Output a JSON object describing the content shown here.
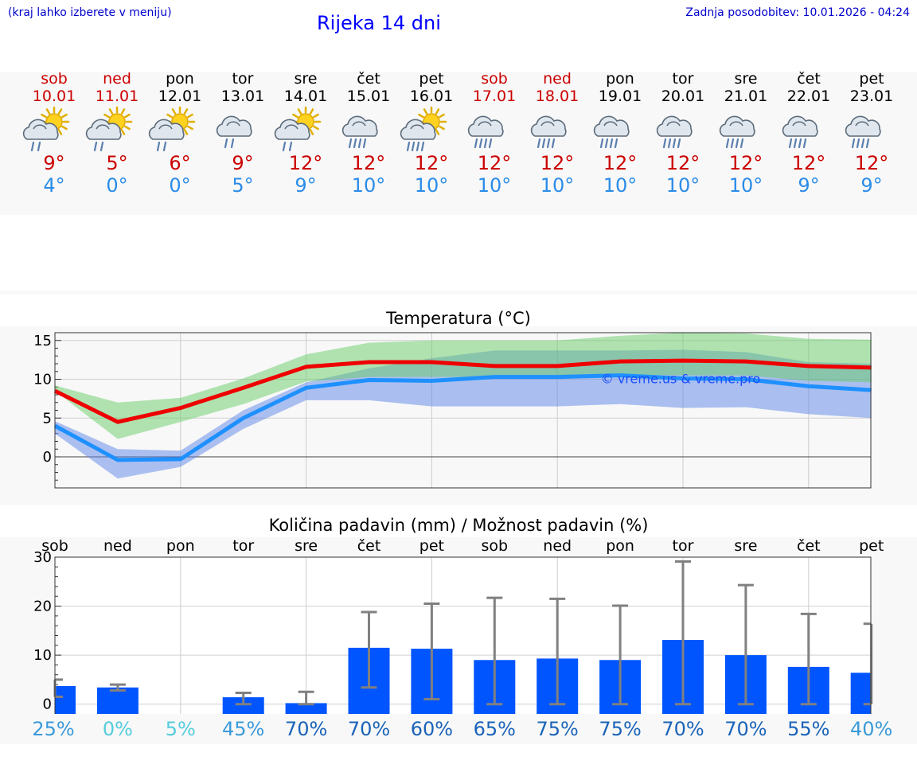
{
  "header": {
    "note": "(kraj lahko izberete v meniju)",
    "title": "Rijeka 14 dni",
    "updated": "Zadnja posodobitev: 10.01.2026 - 04:24"
  },
  "days": [
    {
      "name": "sob",
      "date": "10.01",
      "weekend": true,
      "icon": "sun-cloud-rain-icon",
      "tmax": "9°",
      "tmin": "4°"
    },
    {
      "name": "ned",
      "date": "11.01",
      "weekend": true,
      "icon": "sun-cloud-rain-icon",
      "tmax": "5°",
      "tmin": "0°"
    },
    {
      "name": "pon",
      "date": "12.01",
      "weekend": false,
      "icon": "sun-cloud-icon",
      "tmax": "6°",
      "tmin": "0°"
    },
    {
      "name": "tor",
      "date": "13.01",
      "weekend": false,
      "icon": "cloud-light-rain-icon",
      "tmax": "9°",
      "tmin": "5°"
    },
    {
      "name": "sre",
      "date": "14.01",
      "weekend": false,
      "icon": "sun-cloud-rain-icon",
      "tmax": "12°",
      "tmin": "9°"
    },
    {
      "name": "čet",
      "date": "15.01",
      "weekend": false,
      "icon": "cloud-heavy-rain-icon",
      "tmax": "12°",
      "tmin": "10°"
    },
    {
      "name": "pet",
      "date": "16.01",
      "weekend": false,
      "icon": "sun-cloud-heavy-rain-icon",
      "tmax": "12°",
      "tmin": "10°"
    },
    {
      "name": "sob",
      "date": "17.01",
      "weekend": true,
      "icon": "cloud-heavy-rain-icon",
      "tmax": "12°",
      "tmin": "10°"
    },
    {
      "name": "ned",
      "date": "18.01",
      "weekend": true,
      "icon": "cloud-heavy-rain-icon",
      "tmax": "12°",
      "tmin": "10°"
    },
    {
      "name": "pon",
      "date": "19.01",
      "weekend": false,
      "icon": "cloud-heavy-rain-icon",
      "tmax": "12°",
      "tmin": "10°"
    },
    {
      "name": "tor",
      "date": "20.01",
      "weekend": false,
      "icon": "cloud-heavy-rain-icon",
      "tmax": "12°",
      "tmin": "10°"
    },
    {
      "name": "sre",
      "date": "21.01",
      "weekend": false,
      "icon": "cloud-heavy-rain-icon",
      "tmax": "12°",
      "tmin": "10°"
    },
    {
      "name": "čet",
      "date": "22.01",
      "weekend": false,
      "icon": "cloud-heavy-rain-icon",
      "tmax": "12°",
      "tmin": "9°"
    },
    {
      "name": "pet",
      "date": "23.01",
      "weekend": false,
      "icon": "cloud-heavy-rain-icon",
      "tmax": "12°",
      "tmin": "9°"
    }
  ],
  "colors": {
    "weekend": "#cc0000",
    "tmax": "#cc0000",
    "tmin": "#2a8ce8",
    "max_line": "#ee0000",
    "min_line": "#1e90ff",
    "max_band": "#66cc66",
    "min_band": "#5b86e8",
    "precip_bar": "#0055ff"
  },
  "chart_data": [
    {
      "type": "line",
      "title": "Temperatura (°C)",
      "watermark": "© vreme.us & vreme.pro",
      "xlabel": "",
      "ylabel": "",
      "ylim": [
        -4,
        16
      ],
      "yticks": [
        0,
        5,
        10,
        15
      ],
      "grid": true,
      "series": [
        {
          "name": "max",
          "values": [
            8.5,
            4.5,
            6.3,
            8.9,
            11.6,
            12.2,
            12.2,
            11.7,
            11.7,
            12.3,
            12.4,
            12.3,
            11.7,
            11.5
          ]
        },
        {
          "name": "min",
          "values": [
            4.0,
            -0.4,
            -0.3,
            5.0,
            8.9,
            9.9,
            9.8,
            10.3,
            10.3,
            10.5,
            10.1,
            10.0,
            9.1,
            8.6
          ]
        }
      ],
      "bands": [
        {
          "name": "max_spread",
          "low": [
            8.5,
            2.3,
            4.5,
            6.8,
            9.7,
            10.3,
            10.3,
            10.3,
            10.3,
            10.6,
            10.5,
            10.5,
            9.8,
            9.6
          ],
          "high": [
            9.2,
            7.0,
            7.6,
            10.1,
            13.2,
            14.7,
            15.0,
            15.0,
            15.0,
            15.6,
            16.0,
            15.9,
            15.2,
            15.1
          ]
        },
        {
          "name": "min_spread",
          "low": [
            3.0,
            -2.8,
            -1.3,
            3.6,
            7.3,
            7.3,
            6.5,
            6.5,
            6.5,
            6.8,
            6.3,
            6.4,
            5.5,
            5.0
          ],
          "high": [
            4.6,
            1.0,
            0.8,
            6.0,
            9.6,
            11.4,
            12.7,
            13.7,
            13.7,
            13.7,
            13.8,
            13.5,
            12.2,
            12.0
          ]
        }
      ]
    },
    {
      "type": "bar",
      "title": "Količina padavin (mm) / Možnost padavin (%)",
      "categories": [
        "sob",
        "ned",
        "pon",
        "tor",
        "sre",
        "čet",
        "pet",
        "sob",
        "ned",
        "pon",
        "tor",
        "sre",
        "čet",
        "pet"
      ],
      "ylim": [
        -2,
        30
      ],
      "yticks": [
        0,
        10,
        20,
        30
      ],
      "grid": true,
      "values": [
        3.7,
        3.4,
        0,
        1.4,
        0.2,
        11.5,
        11.3,
        9.0,
        9.3,
        9.0,
        13.1,
        10.0,
        7.6,
        6.4
      ],
      "error_low": [
        1.5,
        2.8,
        0,
        0,
        0,
        3.4,
        1.0,
        0,
        0,
        0,
        0,
        0,
        0,
        0
      ],
      "error_high": [
        5.0,
        4.0,
        0,
        2.3,
        2.5,
        18.8,
        20.5,
        21.7,
        21.5,
        20.1,
        29.1,
        24.3,
        18.4,
        16.4
      ],
      "probability": [
        "25%",
        "0%",
        "5%",
        "45%",
        "70%",
        "70%",
        "60%",
        "65%",
        "75%",
        "75%",
        "70%",
        "70%",
        "55%",
        "40%"
      ],
      "probability_colors": [
        "#3a9ad9",
        "#55ccdd",
        "#55ccdd",
        "#3a9ad9",
        "#1a63b8",
        "#1a63b8",
        "#1a63b8",
        "#1a63b8",
        "#1a63b8",
        "#1a63b8",
        "#1a63b8",
        "#1a63b8",
        "#1a63b8",
        "#3a9ad9"
      ]
    }
  ]
}
